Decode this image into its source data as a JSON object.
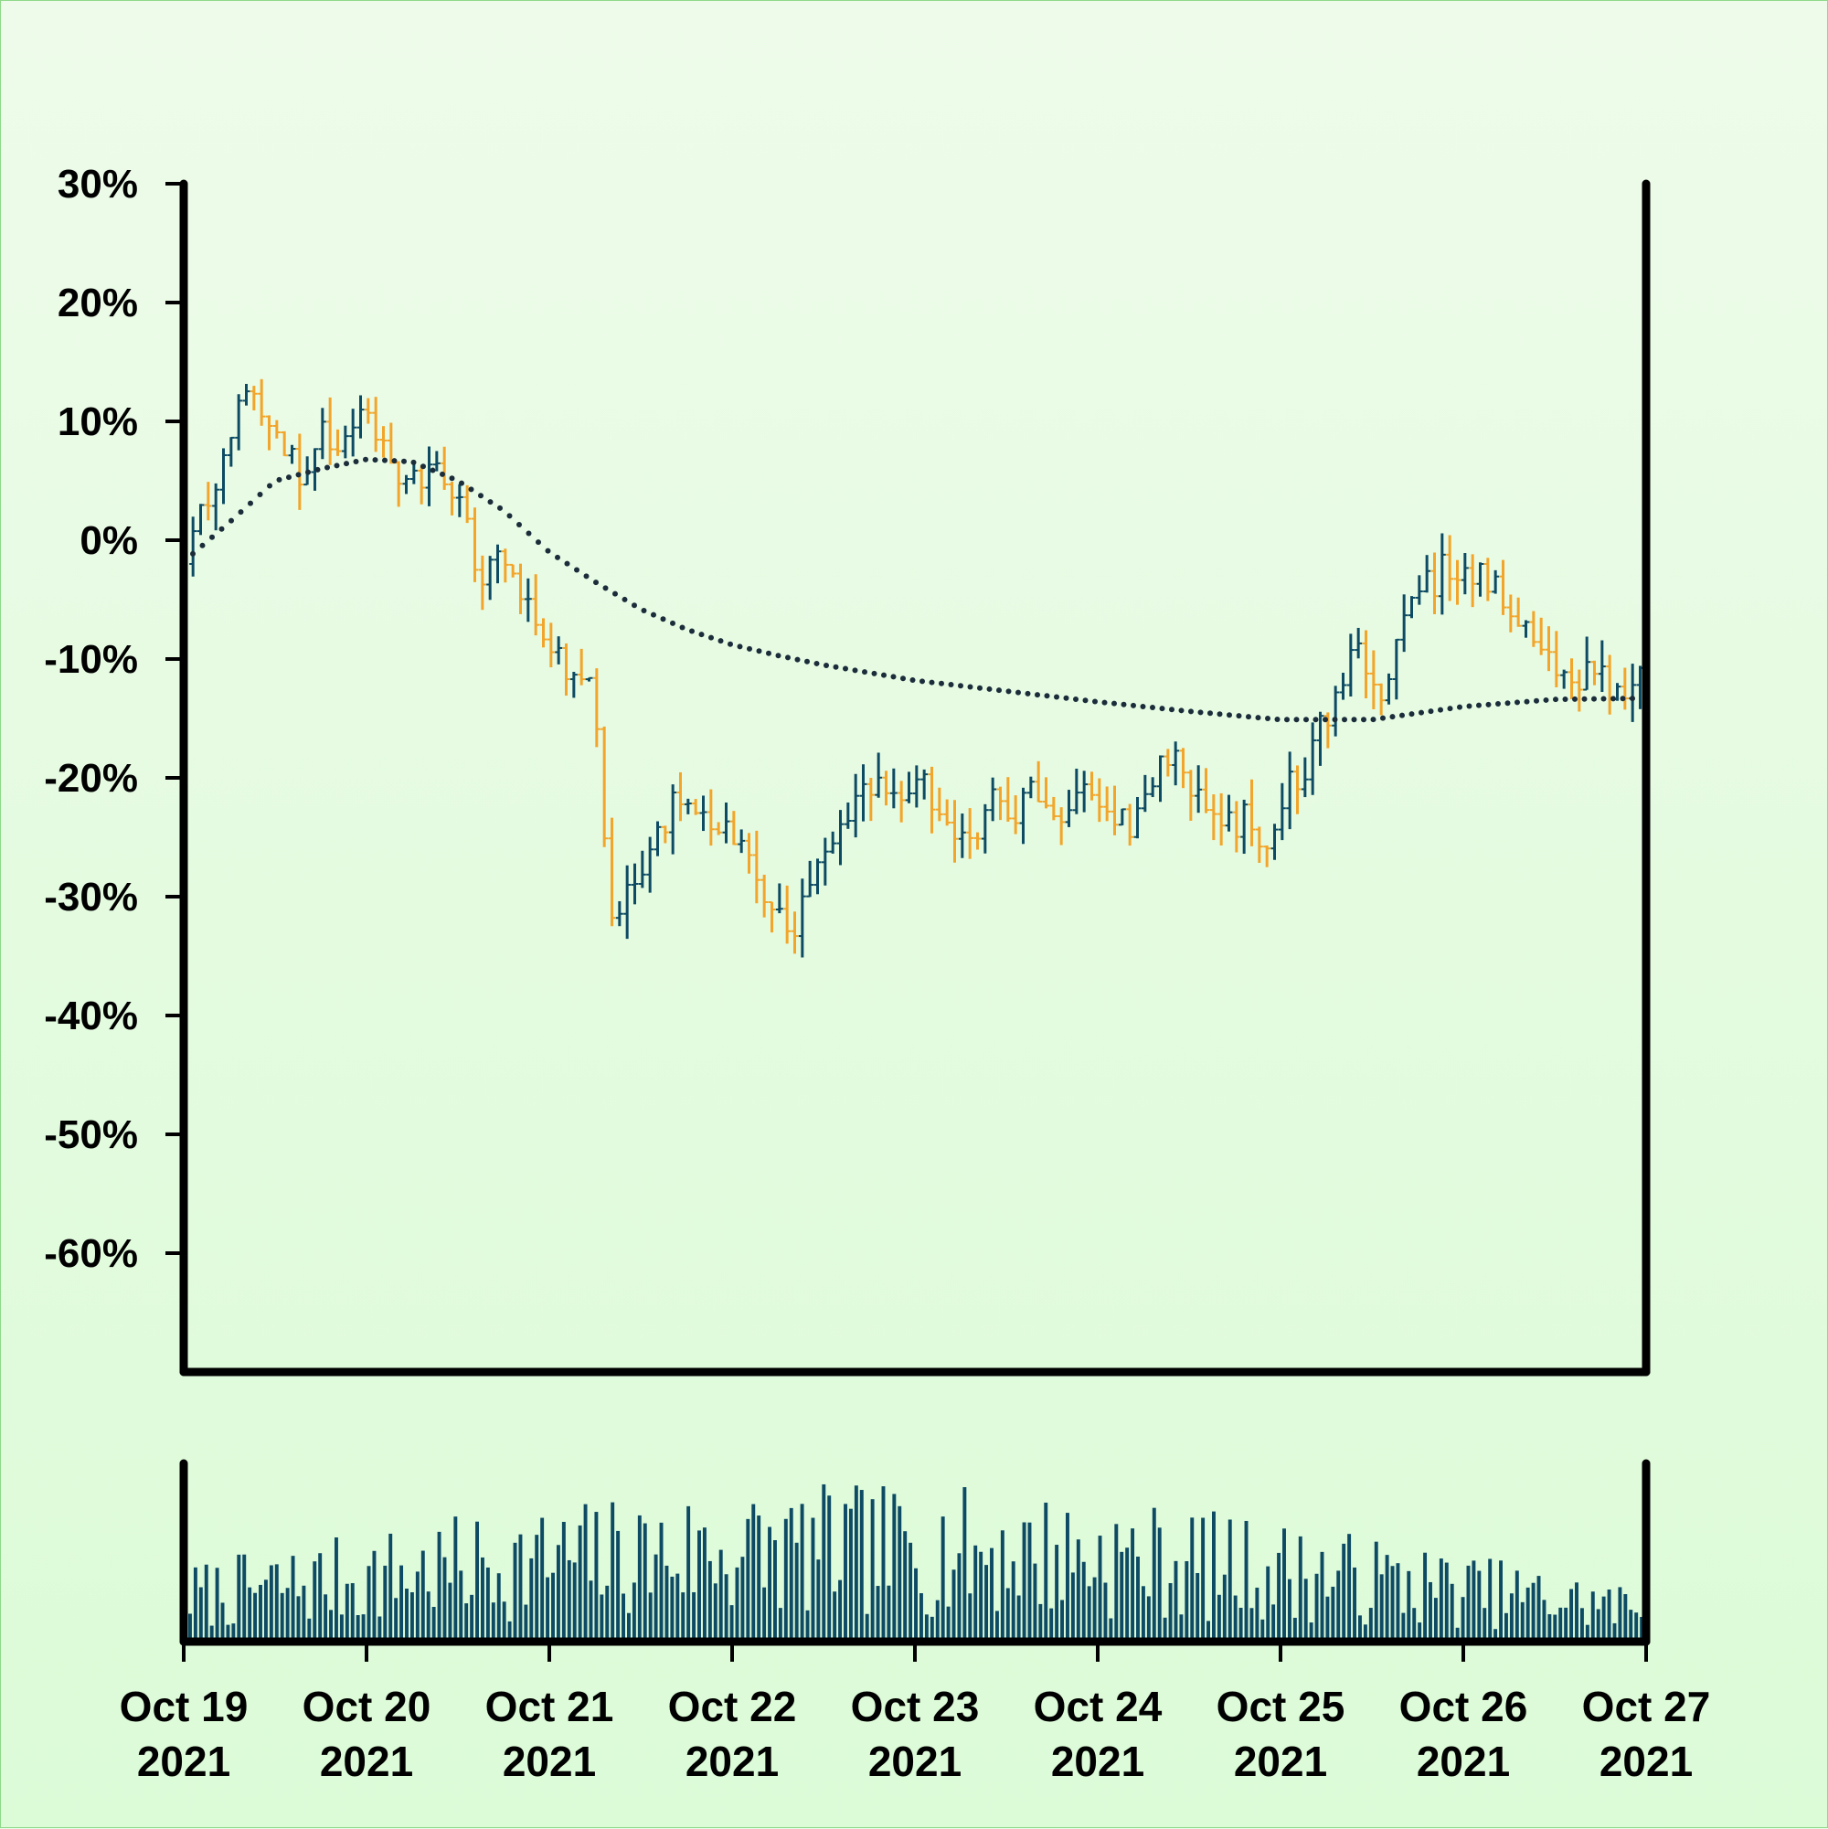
{
  "colors": {
    "up": "#0d4a63",
    "down": "#f2a52a",
    "ma": "#1b2c3a",
    "axis": "#000000",
    "volume": "#0d4a63"
  },
  "chart_data": [
    {
      "type": "ohlc",
      "title": "",
      "xlabel": "",
      "ylabel": "",
      "ylim": [
        -70,
        30
      ],
      "y_ticks": [
        {
          "value": 30,
          "label": "30%"
        },
        {
          "value": 20,
          "label": "20%"
        },
        {
          "value": 10,
          "label": "10%"
        },
        {
          "value": 0,
          "label": "0%"
        },
        {
          "value": -10,
          "label": "-10%"
        },
        {
          "value": -20,
          "label": "-20%"
        },
        {
          "value": -30,
          "label": "-30%"
        },
        {
          "value": -40,
          "label": "-40%"
        },
        {
          "value": -50,
          "label": "-50%"
        },
        {
          "value": -60,
          "label": "-60%"
        }
      ],
      "x_range": [
        "2021-10-19",
        "2021-10-27"
      ],
      "x_ticks": [
        {
          "date": "2021-10-19",
          "line1": "Oct 19",
          "line2": "2021"
        },
        {
          "date": "2021-10-20",
          "line1": "Oct 20",
          "line2": "2021"
        },
        {
          "date": "2021-10-21",
          "line1": "Oct 21",
          "line2": "2021"
        },
        {
          "date": "2021-10-22",
          "line1": "Oct 22",
          "line2": "2021"
        },
        {
          "date": "2021-10-23",
          "line1": "Oct 23",
          "line2": "2021"
        },
        {
          "date": "2021-10-24",
          "line1": "Oct 24",
          "line2": "2021"
        },
        {
          "date": "2021-10-25",
          "line1": "Oct 25",
          "line2": "2021"
        },
        {
          "date": "2021-10-26",
          "line1": "Oct 26",
          "line2": "2021"
        },
        {
          "date": "2021-10-27",
          "line1": "Oct 27",
          "line2": "2021"
        }
      ],
      "close_path": [
        [
          "2021-10-19T00:00",
          -2
        ],
        [
          "2021-10-19T03:00",
          3
        ],
        [
          "2021-10-19T06:00",
          9
        ],
        [
          "2021-10-19T09:00",
          13
        ],
        [
          "2021-10-19T12:00",
          10
        ],
        [
          "2021-10-19T15:00",
          6
        ],
        [
          "2021-10-19T18:00",
          9
        ],
        [
          "2021-10-19T21:00",
          7
        ],
        [
          "2021-10-20T00:00",
          11
        ],
        [
          "2021-10-20T03:00",
          7
        ],
        [
          "2021-10-20T06:00",
          5
        ],
        [
          "2021-10-20T09:00",
          7
        ],
        [
          "2021-10-20T12:00",
          3
        ],
        [
          "2021-10-20T15:00",
          -3
        ],
        [
          "2021-10-20T18:00",
          -1
        ],
        [
          "2021-10-20T21:00",
          -6
        ],
        [
          "2021-10-21T00:00",
          -9
        ],
        [
          "2021-10-21T03:00",
          -12
        ],
        [
          "2021-10-21T06:00",
          -13
        ],
        [
          "2021-10-21T08:00",
          -31
        ],
        [
          "2021-10-21T10:00",
          -30
        ],
        [
          "2021-10-21T13:00",
          -26
        ],
        [
          "2021-10-21T16:00",
          -22
        ],
        [
          "2021-10-21T19:00",
          -23
        ],
        [
          "2021-10-21T22:00",
          -24
        ],
        [
          "2021-10-22T01:00",
          -24
        ],
        [
          "2021-10-22T04:00",
          -30
        ],
        [
          "2021-10-22T07:00",
          -33
        ],
        [
          "2021-10-22T10:00",
          -30
        ],
        [
          "2021-10-22T13:00",
          -26
        ],
        [
          "2021-10-22T16:00",
          -21
        ],
        [
          "2021-10-22T19:00",
          -20
        ],
        [
          "2021-10-22T22:00",
          -22
        ],
        [
          "2021-10-23T01:00",
          -20
        ],
        [
          "2021-10-23T04:00",
          -23
        ],
        [
          "2021-10-23T07:00",
          -25
        ],
        [
          "2021-10-23T10:00",
          -22
        ],
        [
          "2021-10-23T13:00",
          -24
        ],
        [
          "2021-10-23T16:00",
          -21
        ],
        [
          "2021-10-23T19:00",
          -23
        ],
        [
          "2021-10-23T22:00",
          -20
        ],
        [
          "2021-10-24T01:00",
          -22
        ],
        [
          "2021-10-24T04:00",
          -24
        ],
        [
          "2021-10-24T07:00",
          -20
        ],
        [
          "2021-10-24T10:00",
          -17
        ],
        [
          "2021-10-24T13:00",
          -22
        ],
        [
          "2021-10-24T16:00",
          -25
        ],
        [
          "2021-10-24T19:00",
          -23
        ],
        [
          "2021-10-24T22:00",
          -26
        ],
        [
          "2021-10-25T01:00",
          -21
        ],
        [
          "2021-10-25T04:00",
          -18
        ],
        [
          "2021-10-25T07:00",
          -13
        ],
        [
          "2021-10-25T10:00",
          -10
        ],
        [
          "2021-10-25T13:00",
          -13
        ],
        [
          "2021-10-25T16:00",
          -8
        ],
        [
          "2021-10-25T19:00",
          -4
        ],
        [
          "2021-10-25T22:00",
          -2
        ],
        [
          "2021-10-26T01:00",
          -2
        ],
        [
          "2021-10-26T04:00",
          -4
        ],
        [
          "2021-10-26T07:00",
          -6
        ],
        [
          "2021-10-26T10:00",
          -9
        ],
        [
          "2021-10-26T13:00",
          -11
        ],
        [
          "2021-10-26T16:00",
          -11
        ],
        [
          "2021-10-26T19:00",
          -12
        ],
        [
          "2021-10-26T22:00",
          -12
        ],
        [
          "2021-10-27T00:00",
          -11
        ]
      ],
      "moving_average": [
        [
          "2021-10-19T00:00",
          -1.8
        ],
        [
          "2021-10-19T06:00",
          1.5
        ],
        [
          "2021-10-19T12:00",
          5
        ],
        [
          "2021-10-19T18:00",
          6
        ],
        [
          "2021-10-20T00:00",
          6.8
        ],
        [
          "2021-10-20T06:00",
          6.6
        ],
        [
          "2021-10-20T12:00",
          5
        ],
        [
          "2021-10-20T18:00",
          2.5
        ],
        [
          "2021-10-21T00:00",
          -1
        ],
        [
          "2021-10-21T06:00",
          -3.5
        ],
        [
          "2021-10-21T12:00",
          -5.8
        ],
        [
          "2021-10-21T18:00",
          -7.5
        ],
        [
          "2021-10-22T00:00",
          -8.8
        ],
        [
          "2021-10-22T06:00",
          -9.7
        ],
        [
          "2021-10-22T12:00",
          -10.5
        ],
        [
          "2021-10-23T00:00",
          -11.8
        ],
        [
          "2021-10-23T12:00",
          -12.7
        ],
        [
          "2021-10-24T00:00",
          -13.6
        ],
        [
          "2021-10-24T12:00",
          -14.4
        ],
        [
          "2021-10-25T00:00",
          -15.1
        ],
        [
          "2021-10-25T12:00",
          -15.1
        ],
        [
          "2021-10-26T00:00",
          -14
        ],
        [
          "2021-10-26T12:00",
          -13.4
        ],
        [
          "2021-10-27T00:00",
          -13.3
        ]
      ]
    },
    {
      "type": "bar",
      "title": "",
      "xlabel": "",
      "ylabel": "",
      "series_name": "",
      "x_range": [
        "2021-10-19",
        "2021-10-27"
      ]
    }
  ]
}
